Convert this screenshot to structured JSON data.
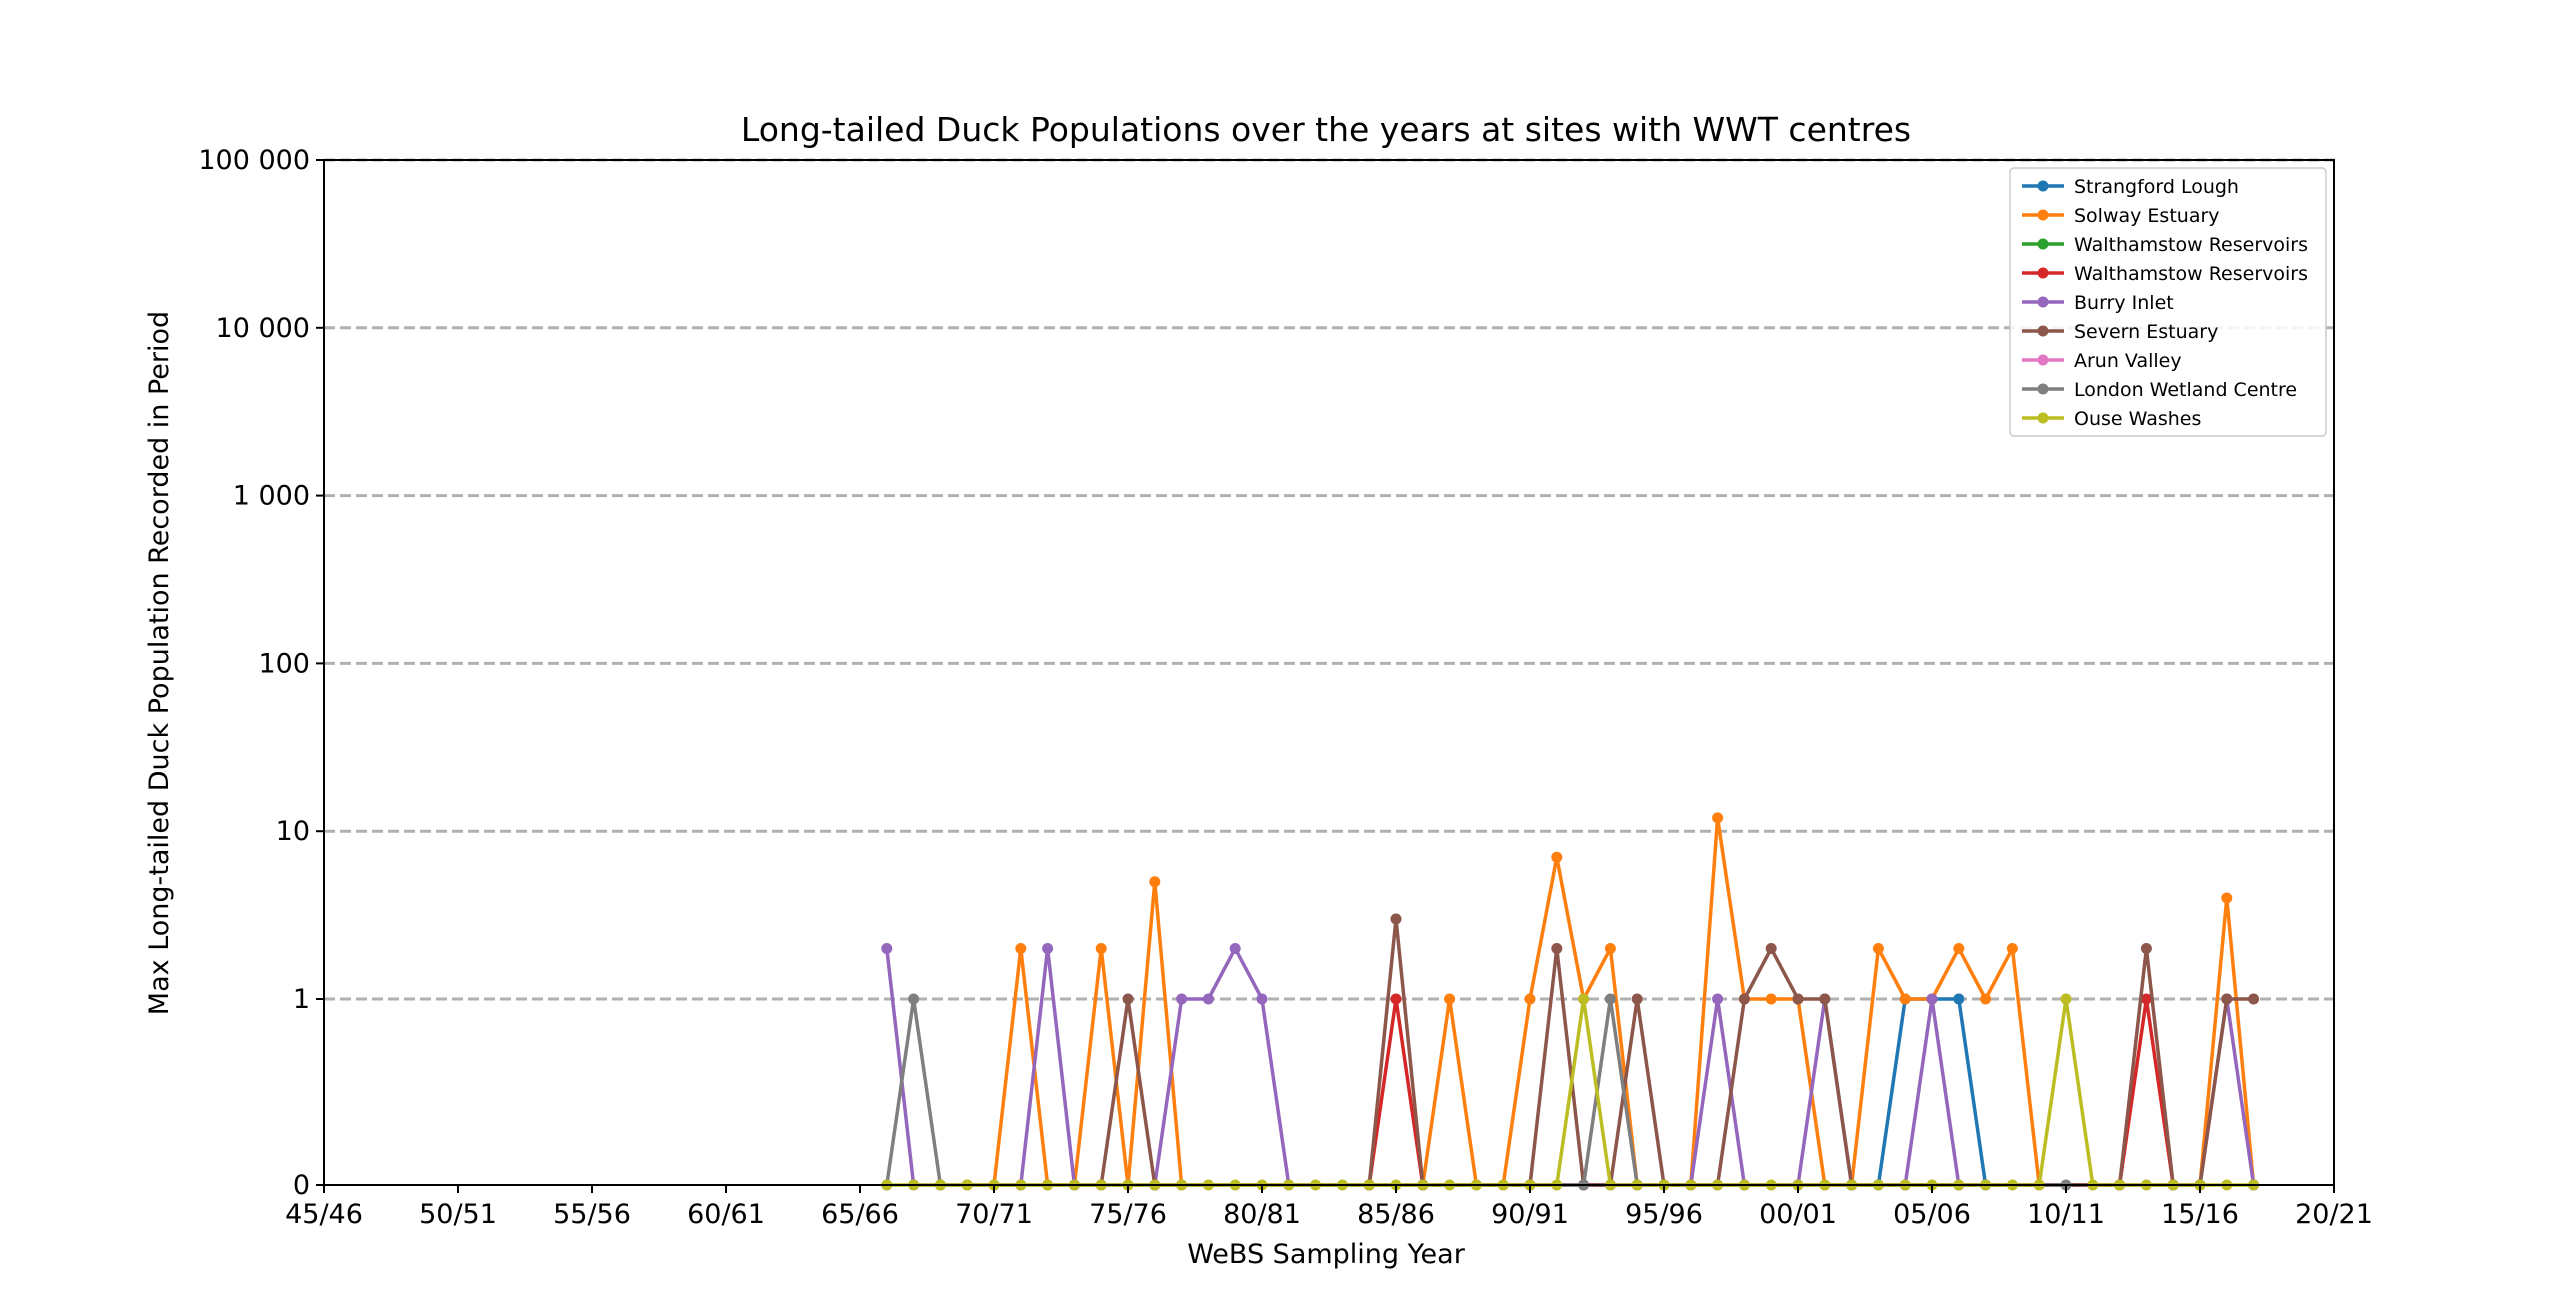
{
  "chart_data": {
    "type": "line",
    "title": "Long-tailed Duck Populations over the years at sites with WWT centres",
    "xlabel": "WeBS Sampling Year",
    "ylabel": "Max Long-tailed Duck Population Recorded in Period",
    "y_scale": "symlog",
    "grid": "horizontal dashed",
    "legend_position": "top-right",
    "x_tick_labels": [
      "45/46",
      "50/51",
      "55/56",
      "60/61",
      "65/66",
      "70/71",
      "75/76",
      "80/81",
      "85/86",
      "90/91",
      "95/96",
      "00/01",
      "05/06",
      "10/11",
      "15/16",
      "20/21"
    ],
    "y_tick_labels": [
      "0",
      "1",
      "10",
      "100",
      "1 000",
      "10 000",
      "100 000"
    ],
    "y_tick_values": [
      0,
      1,
      10,
      100,
      1000,
      10000,
      100000
    ],
    "series": [
      {
        "name": "Strangford Lough",
        "color": "#1f77b4",
        "points": [
          [
            "03/04",
            0
          ],
          [
            "04/05",
            1
          ],
          [
            "05/06",
            1
          ],
          [
            "06/07",
            1
          ],
          [
            "07/08",
            0
          ]
        ]
      },
      {
        "name": "Solway Estuary",
        "color": "#ff7f0e",
        "points": [
          [
            "69/70",
            0
          ],
          [
            "70/71",
            0
          ],
          [
            "71/72",
            2
          ],
          [
            "72/73",
            0
          ],
          [
            "73/74",
            0
          ],
          [
            "74/75",
            2
          ],
          [
            "75/76",
            0
          ],
          [
            "76/77",
            5
          ],
          [
            "77/78",
            0
          ],
          [
            "86/87",
            0
          ],
          [
            "87/88",
            1
          ],
          [
            "88/89",
            0
          ],
          [
            "89/90",
            0
          ],
          [
            "90/91",
            1
          ],
          [
            "91/92",
            7
          ],
          [
            "92/93",
            1
          ],
          [
            "93/94",
            2
          ],
          [
            "94/95",
            0
          ],
          [
            "96/97",
            0
          ],
          [
            "97/98",
            12
          ],
          [
            "98/99",
            1
          ],
          [
            "99/00",
            1
          ],
          [
            "00/01",
            1
          ],
          [
            "01/02",
            0
          ],
          [
            "02/03",
            0
          ],
          [
            "03/04",
            2
          ],
          [
            "04/05",
            1
          ],
          [
            "05/06",
            1
          ],
          [
            "06/07",
            2
          ],
          [
            "07/08",
            1
          ],
          [
            "08/09",
            2
          ],
          [
            "09/10",
            0
          ],
          [
            "15/16",
            0
          ],
          [
            "16/17",
            4
          ],
          [
            "17/18",
            0
          ]
        ]
      },
      {
        "name": "Walthamstow Reservoirs",
        "color": "#2ca02c",
        "points": []
      },
      {
        "name": "Walthamstow Reservoirs",
        "color": "#d62728",
        "points": [
          [
            "84/85",
            0
          ],
          [
            "85/86",
            1
          ],
          [
            "86/87",
            0
          ],
          [
            "12/13",
            0
          ],
          [
            "13/14",
            1
          ],
          [
            "14/15",
            0
          ]
        ]
      },
      {
        "name": "Burry Inlet",
        "color": "#9467bd",
        "points": [
          [
            "66/67",
            2
          ],
          [
            "67/68",
            0
          ],
          [
            "71/72",
            0
          ],
          [
            "72/73",
            2
          ],
          [
            "73/74",
            0
          ],
          [
            "76/77",
            0
          ],
          [
            "77/78",
            1
          ],
          [
            "78/79",
            1
          ],
          [
            "79/80",
            2
          ],
          [
            "80/81",
            1
          ],
          [
            "81/82",
            0
          ],
          [
            "96/97",
            0
          ],
          [
            "97/98",
            1
          ],
          [
            "98/99",
            0
          ],
          [
            "00/01",
            0
          ],
          [
            "01/02",
            1
          ],
          [
            "02/03",
            0
          ],
          [
            "04/05",
            0
          ],
          [
            "05/06",
            1
          ],
          [
            "06/07",
            0
          ],
          [
            "15/16",
            0
          ],
          [
            "16/17",
            1
          ],
          [
            "17/18",
            0
          ]
        ]
      },
      {
        "name": "Severn Estuary",
        "color": "#8c564b",
        "points": [
          [
            "74/75",
            0
          ],
          [
            "75/76",
            1
          ],
          [
            "76/77",
            0
          ],
          [
            "84/85",
            0
          ],
          [
            "85/86",
            3
          ],
          [
            "86/87",
            0
          ],
          [
            "90/91",
            0
          ],
          [
            "91/92",
            2
          ],
          [
            "92/93",
            0
          ],
          [
            "93/94",
            0
          ],
          [
            "94/95",
            1
          ],
          [
            "95/96",
            0
          ],
          [
            "97/98",
            0
          ],
          [
            "98/99",
            1
          ],
          [
            "99/00",
            2
          ],
          [
            "00/01",
            1
          ],
          [
            "01/02",
            1
          ],
          [
            "02/03",
            0
          ],
          [
            "12/13",
            0
          ],
          [
            "13/14",
            2
          ],
          [
            "14/15",
            0
          ],
          [
            "15/16",
            0
          ],
          [
            "16/17",
            1
          ],
          [
            "17/18",
            1
          ]
        ]
      },
      {
        "name": "Arun Valley",
        "color": "#e377c2",
        "points": []
      },
      {
        "name": "London Wetland Centre",
        "color": "#7f7f7f",
        "points": [
          [
            "66/67",
            0
          ],
          [
            "67/68",
            1
          ],
          [
            "68/69",
            0
          ],
          [
            "92/93",
            0
          ],
          [
            "93/94",
            1
          ],
          [
            "94/95",
            0
          ],
          [
            "10/11",
            0
          ]
        ]
      },
      {
        "name": "Ouse Washes",
        "color": "#bcbd22",
        "points": [
          [
            "66/67",
            0
          ],
          [
            "67/68",
            0
          ],
          [
            "68/69",
            0
          ],
          [
            "69/70",
            0
          ],
          [
            "70/71",
            0
          ],
          [
            "71/72",
            0
          ],
          [
            "72/73",
            0
          ],
          [
            "73/74",
            0
          ],
          [
            "74/75",
            0
          ],
          [
            "75/76",
            0
          ],
          [
            "76/77",
            0
          ],
          [
            "77/78",
            0
          ],
          [
            "78/79",
            0
          ],
          [
            "79/80",
            0
          ],
          [
            "80/81",
            0
          ],
          [
            "81/82",
            0
          ],
          [
            "82/83",
            0
          ],
          [
            "83/84",
            0
          ],
          [
            "84/85",
            0
          ],
          [
            "85/86",
            0
          ],
          [
            "86/87",
            0
          ],
          [
            "87/88",
            0
          ],
          [
            "88/89",
            0
          ],
          [
            "89/90",
            0
          ],
          [
            "90/91",
            0
          ],
          [
            "91/92",
            0
          ],
          [
            "92/93",
            1
          ],
          [
            "93/94",
            0
          ],
          [
            "94/95",
            0
          ],
          [
            "95/96",
            0
          ],
          [
            "96/97",
            0
          ],
          [
            "97/98",
            0
          ],
          [
            "98/99",
            0
          ],
          [
            "99/00",
            0
          ],
          [
            "00/01",
            0
          ],
          [
            "01/02",
            0
          ],
          [
            "02/03",
            0
          ],
          [
            "03/04",
            0
          ],
          [
            "04/05",
            0
          ],
          [
            "05/06",
            0
          ],
          [
            "06/07",
            0
          ],
          [
            "07/08",
            0
          ],
          [
            "08/09",
            0
          ],
          [
            "09/10",
            0
          ],
          [
            "10/11",
            1
          ],
          [
            "11/12",
            0
          ],
          [
            "12/13",
            0
          ],
          [
            "13/14",
            0
          ],
          [
            "14/15",
            0
          ],
          [
            "15/16",
            0
          ],
          [
            "16/17",
            0
          ],
          [
            "17/18",
            0
          ]
        ]
      }
    ]
  }
}
